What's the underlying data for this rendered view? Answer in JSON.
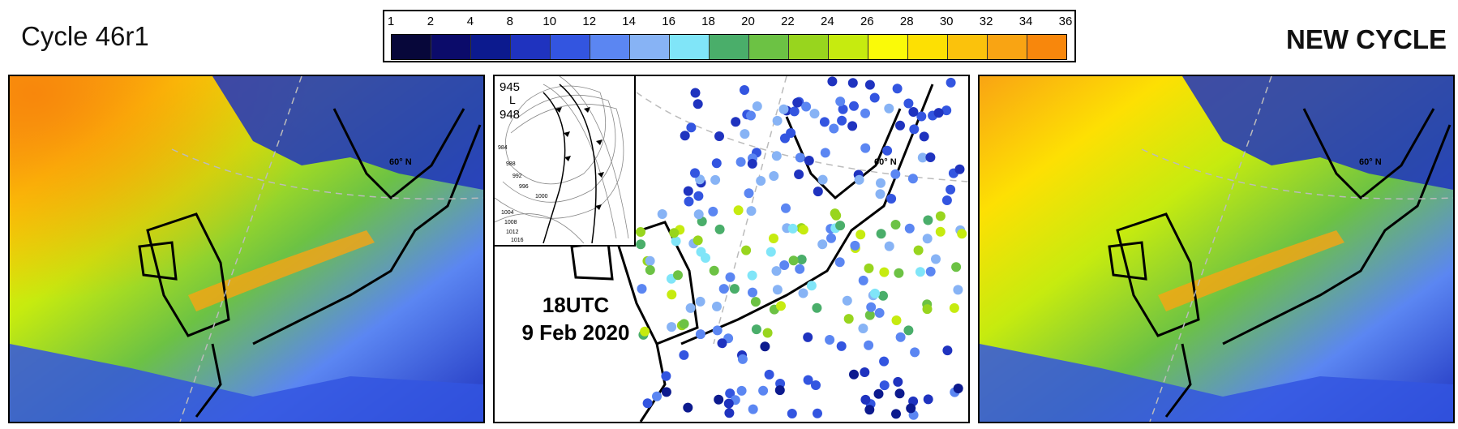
{
  "header": {
    "left_title": "Cycle 46r1",
    "right_title": "NEW CYCLE"
  },
  "colorbar": {
    "ticks": [
      "1",
      "2",
      "4",
      "8",
      "10",
      "12",
      "14",
      "16",
      "18",
      "20",
      "22",
      "24",
      "26",
      "28",
      "30",
      "32",
      "34",
      "36"
    ],
    "colors": [
      "#07073a",
      "#0b0b6a",
      "#0c1a8e",
      "#1f33bf",
      "#3355e0",
      "#5b86f2",
      "#87b3f5",
      "#80e5f8",
      "#4aae6a",
      "#6cc244",
      "#98d51e",
      "#c6eb0f",
      "#fafa08",
      "#fde003",
      "#fbc20c",
      "#f9a413",
      "#f8870c"
    ]
  },
  "map_labels": {
    "latitude": "60° N"
  },
  "center_panel": {
    "time": "18UTC",
    "date": "9 Feb 2020",
    "inset": {
      "pressure_low_1": "945",
      "low_letter": "L",
      "pressure_low_2": "948",
      "isobar_labels": [
        "984",
        "988",
        "992",
        "996",
        "1000",
        "1004",
        "1008",
        "1012",
        "1016"
      ]
    }
  }
}
